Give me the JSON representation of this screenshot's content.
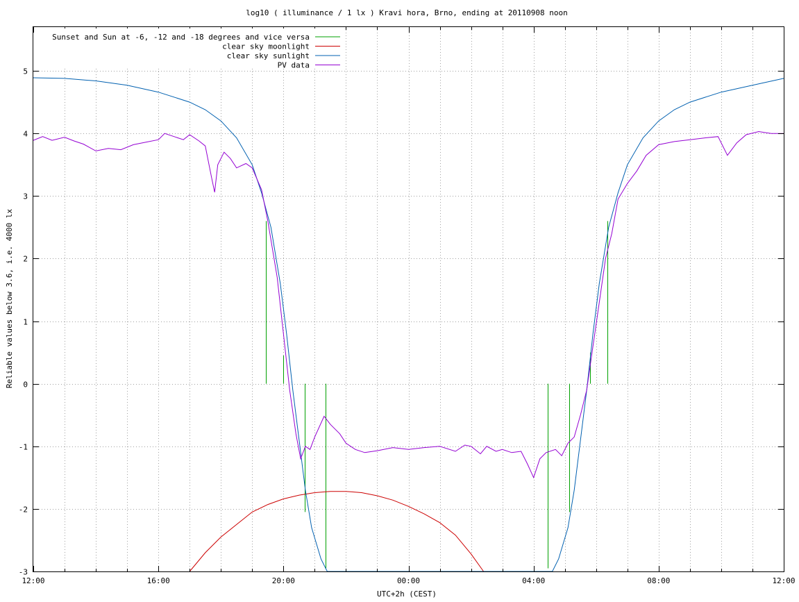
{
  "chart_data": {
    "type": "line",
    "title": "log10 ( illuminance / 1 lx ) Kravi hora, Brno, ending at 20110908 noon",
    "xlabel": "UTC+2h (CEST)",
    "ylabel": "Reliable values below 3.6, i.e. 4000 lx",
    "xlim": [
      12,
      36
    ],
    "ylim": [
      -3,
      5.7
    ],
    "x_ticks": [
      {
        "value": 12,
        "label": "12:00"
      },
      {
        "value": 16,
        "label": "16:00"
      },
      {
        "value": 20,
        "label": "20:00"
      },
      {
        "value": 24,
        "label": "00:00"
      },
      {
        "value": 28,
        "label": "04:00"
      },
      {
        "value": 32,
        "label": "08:00"
      },
      {
        "value": 36,
        "label": "12:00"
      }
    ],
    "y_ticks": [
      {
        "value": 5,
        "label": "5"
      },
      {
        "value": 4,
        "label": "4"
      },
      {
        "value": 3,
        "label": "3"
      },
      {
        "value": 2,
        "label": "2"
      },
      {
        "value": 1,
        "label": "1"
      },
      {
        "value": 0,
        "label": "0"
      },
      {
        "value": -1,
        "label": "-1"
      },
      {
        "value": -2,
        "label": "-2"
      },
      {
        "value": -3,
        "label": "-3"
      }
    ],
    "grid": true,
    "legend_position": "top-left",
    "series": [
      {
        "name": "Sunset and Sun at -6, -12 and -18 degrees and vice versa",
        "color": "#00a000",
        "kind": "impulses",
        "points": [
          [
            19.43,
            2.6
          ],
          [
            20.0,
            0.45
          ],
          [
            20.67,
            -2.05
          ],
          [
            21.35,
            -2.95
          ],
          [
            28.45,
            -2.95
          ],
          [
            29.13,
            -2.05
          ],
          [
            29.8,
            0.5
          ],
          [
            30.37,
            2.6
          ]
        ]
      },
      {
        "name": "clear sky moonlight",
        "color": "#cc0000",
        "points": [
          [
            17.0,
            -3.0
          ],
          [
            17.5,
            -2.7
          ],
          [
            18.0,
            -2.45
          ],
          [
            18.5,
            -2.25
          ],
          [
            19.0,
            -2.05
          ],
          [
            19.5,
            -1.93
          ],
          [
            20.0,
            -1.84
          ],
          [
            20.5,
            -1.78
          ],
          [
            21.0,
            -1.74
          ],
          [
            21.5,
            -1.72
          ],
          [
            22.0,
            -1.72
          ],
          [
            22.5,
            -1.74
          ],
          [
            23.0,
            -1.79
          ],
          [
            23.5,
            -1.86
          ],
          [
            24.0,
            -1.96
          ],
          [
            24.5,
            -2.08
          ],
          [
            25.0,
            -2.22
          ],
          [
            25.5,
            -2.42
          ],
          [
            26.0,
            -2.72
          ],
          [
            26.4,
            -3.0
          ]
        ]
      },
      {
        "name": "clear sky sunlight",
        "color": "#0060b0",
        "points": [
          [
            12.0,
            4.89
          ],
          [
            13.0,
            4.88
          ],
          [
            14.0,
            4.84
          ],
          [
            15.0,
            4.77
          ],
          [
            16.0,
            4.66
          ],
          [
            17.0,
            4.5
          ],
          [
            17.5,
            4.38
          ],
          [
            18.0,
            4.2
          ],
          [
            18.5,
            3.93
          ],
          [
            19.0,
            3.5
          ],
          [
            19.3,
            3.05
          ],
          [
            19.6,
            2.5
          ],
          [
            19.9,
            1.6
          ],
          [
            20.1,
            0.8
          ],
          [
            20.3,
            -0.1
          ],
          [
            20.5,
            -0.9
          ],
          [
            20.7,
            -1.7
          ],
          [
            20.9,
            -2.3
          ],
          [
            21.2,
            -2.8
          ],
          [
            21.4,
            -3.0
          ],
          [
            28.6,
            -3.0
          ],
          [
            28.8,
            -2.8
          ],
          [
            29.1,
            -2.3
          ],
          [
            29.3,
            -1.7
          ],
          [
            29.5,
            -0.9
          ],
          [
            29.7,
            -0.1
          ],
          [
            29.9,
            0.8
          ],
          [
            30.1,
            1.6
          ],
          [
            30.4,
            2.5
          ],
          [
            30.7,
            3.05
          ],
          [
            31.0,
            3.5
          ],
          [
            31.5,
            3.93
          ],
          [
            32.0,
            4.2
          ],
          [
            32.5,
            4.38
          ],
          [
            33.0,
            4.5
          ],
          [
            34.0,
            4.66
          ],
          [
            35.0,
            4.77
          ],
          [
            36.0,
            4.88
          ]
        ]
      },
      {
        "name": "PV data",
        "color": "#9400d3",
        "points": [
          [
            12.0,
            3.89
          ],
          [
            12.3,
            3.95
          ],
          [
            12.6,
            3.89
          ],
          [
            13.0,
            3.94
          ],
          [
            13.3,
            3.88
          ],
          [
            13.6,
            3.83
          ],
          [
            14.0,
            3.72
          ],
          [
            14.4,
            3.76
          ],
          [
            14.8,
            3.74
          ],
          [
            15.2,
            3.82
          ],
          [
            15.6,
            3.86
          ],
          [
            16.0,
            3.9
          ],
          [
            16.2,
            4.0
          ],
          [
            16.5,
            3.95
          ],
          [
            16.8,
            3.9
          ],
          [
            17.0,
            3.98
          ],
          [
            17.3,
            3.88
          ],
          [
            17.5,
            3.8
          ],
          [
            17.7,
            3.3
          ],
          [
            17.8,
            3.06
          ],
          [
            17.9,
            3.5
          ],
          [
            18.1,
            3.7
          ],
          [
            18.3,
            3.6
          ],
          [
            18.5,
            3.45
          ],
          [
            18.8,
            3.52
          ],
          [
            19.0,
            3.45
          ],
          [
            19.3,
            3.1
          ],
          [
            19.5,
            2.6
          ],
          [
            19.8,
            1.7
          ],
          [
            20.0,
            0.8
          ],
          [
            20.2,
            -0.1
          ],
          [
            20.4,
            -0.8
          ],
          [
            20.55,
            -1.2
          ],
          [
            20.7,
            -1.0
          ],
          [
            20.85,
            -1.05
          ],
          [
            21.0,
            -0.85
          ],
          [
            21.3,
            -0.52
          ],
          [
            21.5,
            -0.65
          ],
          [
            21.8,
            -0.8
          ],
          [
            22.0,
            -0.95
          ],
          [
            22.3,
            -1.05
          ],
          [
            22.6,
            -1.1
          ],
          [
            23.0,
            -1.07
          ],
          [
            23.5,
            -1.02
          ],
          [
            24.0,
            -1.05
          ],
          [
            24.5,
            -1.02
          ],
          [
            25.0,
            -1.0
          ],
          [
            25.5,
            -1.08
          ],
          [
            25.8,
            -0.98
          ],
          [
            26.0,
            -1.0
          ],
          [
            26.3,
            -1.12
          ],
          [
            26.5,
            -1.0
          ],
          [
            26.8,
            -1.08
          ],
          [
            27.0,
            -1.05
          ],
          [
            27.3,
            -1.1
          ],
          [
            27.6,
            -1.08
          ],
          [
            27.8,
            -1.28
          ],
          [
            28.0,
            -1.5
          ],
          [
            28.2,
            -1.2
          ],
          [
            28.4,
            -1.1
          ],
          [
            28.7,
            -1.05
          ],
          [
            28.9,
            -1.15
          ],
          [
            29.1,
            -0.95
          ],
          [
            29.3,
            -0.85
          ],
          [
            29.5,
            -0.5
          ],
          [
            29.7,
            -0.1
          ],
          [
            29.9,
            0.6
          ],
          [
            30.1,
            1.3
          ],
          [
            30.3,
            2.0
          ],
          [
            30.5,
            2.4
          ],
          [
            30.7,
            2.95
          ],
          [
            31.0,
            3.2
          ],
          [
            31.3,
            3.4
          ],
          [
            31.6,
            3.65
          ],
          [
            32.0,
            3.82
          ],
          [
            32.5,
            3.87
          ],
          [
            33.0,
            3.9
          ],
          [
            33.5,
            3.93
          ],
          [
            33.9,
            3.95
          ],
          [
            34.2,
            3.65
          ],
          [
            34.5,
            3.85
          ],
          [
            34.8,
            3.98
          ],
          [
            35.2,
            4.03
          ],
          [
            35.6,
            4.0
          ],
          [
            36.0,
            4.0
          ]
        ]
      }
    ]
  }
}
